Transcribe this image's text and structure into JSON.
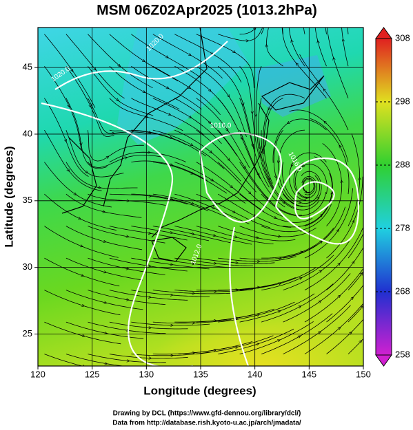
{
  "title": "MSM 06Z02Apr2025 (1013.2hPa)",
  "map": {
    "xlabel": "Longitude (degrees)",
    "ylabel": "Latitude  (degrees)",
    "xlim": [
      120,
      150
    ],
    "ylim": [
      22.6,
      48
    ],
    "xticks": [
      120,
      125,
      130,
      135,
      140,
      145,
      150
    ],
    "yticks": [
      25,
      30,
      35,
      40,
      45
    ],
    "contour_labels": [
      "1020.0",
      "1020.0",
      "1016.0",
      "1016.0",
      "1012.0"
    ]
  },
  "colorbar": {
    "lim": [
      258,
      308
    ],
    "ticks": [
      258,
      268,
      278,
      288,
      298,
      308
    ]
  },
  "credits": [
    "Drawing by DCL (https://www.gfd-dennou.org/library/dcl/)",
    "Data from http://database.rish.kyoto-u.ac.jp/arch/jmadata/"
  ]
}
